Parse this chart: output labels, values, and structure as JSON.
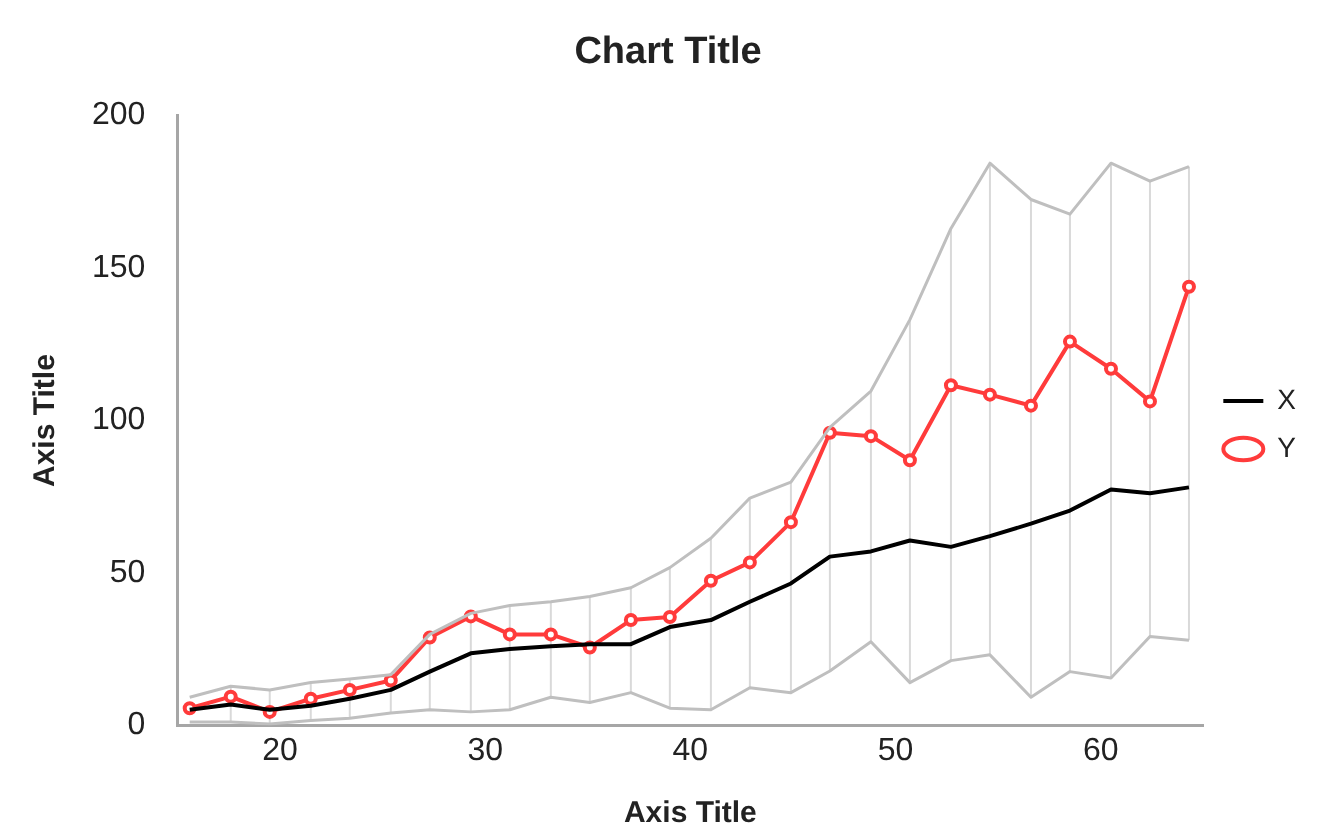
{
  "chart_data": {
    "type": "line",
    "title": "Chart Title",
    "xlabel": "Axis Title",
    "ylabel": "Axis Title",
    "x": [
      15.6,
      17.6,
      19.5,
      21.5,
      23.4,
      25.4,
      27.3,
      29.3,
      31.2,
      33.2,
      35.1,
      37.1,
      39,
      41,
      42.9,
      44.9,
      46.8,
      48.8,
      50.7,
      52.7,
      54.6,
      56.6,
      58.5,
      60.5,
      62.4,
      64.3
    ],
    "xlim": [
      15,
      65
    ],
    "xticks": [
      20,
      30,
      40,
      50,
      60
    ],
    "ylim": [
      0,
      200
    ],
    "yticks": [
      0,
      50,
      100,
      150,
      200
    ],
    "grid": false,
    "legend": "right",
    "series": [
      {
        "color": "#bfbfbf",
        "marker": "none",
        "values": [
          9.3,
          12.9,
          11.7,
          14.1,
          15.3,
          16.7,
          29.9,
          36.8,
          39.4,
          40.6,
          42.3,
          45.2,
          51.8,
          61.4,
          74.6,
          79.8,
          97.8,
          109.7,
          133.1,
          163,
          184.4,
          172.5,
          167.7,
          184.4,
          178.5,
          183.3
        ]
      },
      {
        "color": "#bfbfbf",
        "marker": "none",
        "values": [
          1.2,
          1.2,
          0.5,
          1.7,
          2.4,
          4.1,
          5.2,
          4.5,
          5.2,
          9.3,
          7.6,
          10.8,
          5.7,
          5.2,
          12.4,
          10.8,
          17.9,
          27.5,
          14.1,
          21.3,
          23.2,
          9.3,
          17.7,
          15.6,
          29.2,
          28
        ],
        "errors": [
          null,
          [
            1.2,
            12.9
          ],
          [
            0.5,
            11.7
          ],
          [
            1.7,
            14.1
          ],
          [
            2.4,
            15.3
          ],
          [
            4.1,
            16.7
          ],
          [
            5.2,
            29.9
          ],
          [
            4.5,
            36.8
          ],
          [
            5.2,
            39.4
          ],
          [
            9.3,
            40.6
          ],
          [
            7.6,
            42.3
          ],
          [
            10.8,
            45.2
          ],
          [
            5.7,
            51.8
          ],
          [
            5.2,
            61.4
          ],
          [
            12.4,
            74.6
          ],
          [
            10.8,
            79.8
          ],
          [
            17.9,
            97.8
          ],
          [
            27.5,
            109.7
          ],
          [
            14.1,
            133.1
          ],
          [
            21.3,
            163
          ],
          [
            23.2,
            184.4
          ],
          [
            9.3,
            172.5
          ],
          [
            17.7,
            167.7
          ],
          [
            15.6,
            184.4
          ],
          [
            29.2,
            178.5
          ],
          [
            28,
            183.3
          ]
        ]
      },
      {
        "name": "X",
        "color": "#000000",
        "marker": "none",
        "values": [
          5.2,
          6.9,
          5.2,
          6.5,
          8.8,
          11.7,
          17.7,
          23.7,
          25.1,
          26,
          26.7,
          26.7,
          32.3,
          34.6,
          40.6,
          46.6,
          55.4,
          57.1,
          60.7,
          58.6,
          62.1,
          66.2,
          70.5,
          77.4,
          76.2,
          78.1
        ]
      },
      {
        "name": "Y",
        "color": "#ff3b3b",
        "marker": "circle",
        "values": [
          5.7,
          9.5,
          4.5,
          8.8,
          11.7,
          14.8,
          28.9,
          35.8,
          29.9,
          29.9,
          25.6,
          34.6,
          35.6,
          47.5,
          53.5,
          66.7,
          96,
          94.9,
          87,
          111.6,
          108.5,
          104.9,
          125.9,
          117,
          106.3,
          143.9
        ]
      }
    ]
  }
}
